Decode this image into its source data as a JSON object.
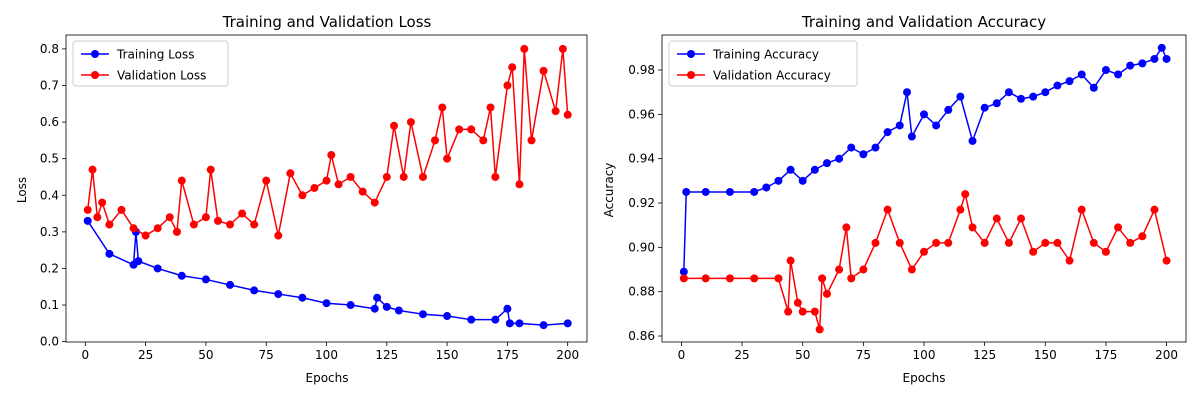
{
  "figure": {
    "charts": [
      {
        "title": "Training and Validation Loss",
        "xlabel": "Epochs",
        "ylabel": "Loss"
      },
      {
        "title": "Training and Validation Accuracy",
        "xlabel": "Epochs",
        "ylabel": "Accuracy"
      }
    ]
  },
  "chart_data": [
    {
      "type": "line",
      "title": "Training and Validation Loss",
      "xlabel": "Epochs",
      "ylabel": "Loss",
      "xlim": [
        -8,
        208
      ],
      "ylim": [
        -0.001,
        0.838
      ],
      "xticks": [
        0,
        25,
        50,
        75,
        100,
        125,
        150,
        175,
        200
      ],
      "yticks": [
        0.0,
        0.1,
        0.2,
        0.3,
        0.4,
        0.5,
        0.6,
        0.7,
        0.8
      ],
      "ytick_labels": [
        "0.0",
        "0.1",
        "0.2",
        "0.3",
        "0.4",
        "0.5",
        "0.6",
        "0.7",
        "0.8"
      ],
      "legend_position": "top-left",
      "grid": false,
      "markers": true,
      "series": [
        {
          "name": "Training Loss",
          "color": "#0000ff",
          "x": [
            1,
            10,
            20,
            21,
            22,
            30,
            40,
            50,
            60,
            70,
            80,
            90,
            100,
            110,
            120,
            121,
            125,
            130,
            140,
            150,
            160,
            170,
            175,
            176,
            180,
            190,
            200
          ],
          "y": [
            0.33,
            0.24,
            0.21,
            0.3,
            0.22,
            0.2,
            0.18,
            0.17,
            0.155,
            0.14,
            0.13,
            0.12,
            0.105,
            0.1,
            0.09,
            0.12,
            0.095,
            0.085,
            0.075,
            0.07,
            0.06,
            0.06,
            0.09,
            0.05,
            0.05,
            0.045,
            0.05
          ]
        },
        {
          "name": "Validation Loss",
          "color": "#ff0000",
          "x": [
            1,
            3,
            5,
            7,
            10,
            15,
            20,
            25,
            30,
            35,
            38,
            40,
            45,
            50,
            52,
            55,
            60,
            65,
            70,
            75,
            80,
            85,
            90,
            95,
            100,
            102,
            105,
            110,
            115,
            120,
            125,
            128,
            132,
            135,
            140,
            145,
            148,
            150,
            155,
            160,
            165,
            168,
            170,
            175,
            177,
            180,
            182,
            185,
            190,
            195,
            198,
            200
          ],
          "y": [
            0.36,
            0.47,
            0.34,
            0.38,
            0.32,
            0.36,
            0.31,
            0.29,
            0.31,
            0.34,
            0.3,
            0.44,
            0.32,
            0.34,
            0.47,
            0.33,
            0.32,
            0.35,
            0.32,
            0.44,
            0.29,
            0.46,
            0.4,
            0.42,
            0.44,
            0.51,
            0.43,
            0.45,
            0.41,
            0.38,
            0.45,
            0.59,
            0.45,
            0.6,
            0.45,
            0.55,
            0.64,
            0.5,
            0.58,
            0.58,
            0.55,
            0.64,
            0.45,
            0.7,
            0.75,
            0.43,
            0.8,
            0.55,
            0.74,
            0.63,
            0.8,
            0.62
          ]
        }
      ]
    },
    {
      "type": "line",
      "title": "Training and Validation Accuracy",
      "xlabel": "Epochs",
      "ylabel": "Accuracy",
      "xlim": [
        -8,
        208
      ],
      "ylim": [
        0.8573,
        0.9958
      ],
      "xticks": [
        0,
        25,
        50,
        75,
        100,
        125,
        150,
        175,
        200
      ],
      "yticks": [
        0.86,
        0.88,
        0.9,
        0.92,
        0.94,
        0.96,
        0.98
      ],
      "ytick_labels": [
        "0.86",
        "0.88",
        "0.90",
        "0.92",
        "0.94",
        "0.96",
        "0.98"
      ],
      "legend_position": "top-left",
      "grid": false,
      "markers": true,
      "series": [
        {
          "name": "Training Accuracy",
          "color": "#0000ff",
          "x": [
            1,
            2,
            10,
            20,
            30,
            35,
            40,
            45,
            50,
            55,
            60,
            65,
            70,
            75,
            80,
            85,
            90,
            93,
            95,
            100,
            105,
            110,
            115,
            120,
            125,
            130,
            135,
            140,
            145,
            150,
            155,
            160,
            165,
            170,
            175,
            180,
            185,
            190,
            195,
            198,
            200
          ],
          "y": [
            0.889,
            0.925,
            0.925,
            0.925,
            0.925,
            0.927,
            0.93,
            0.935,
            0.93,
            0.935,
            0.938,
            0.94,
            0.945,
            0.942,
            0.945,
            0.952,
            0.955,
            0.97,
            0.95,
            0.96,
            0.955,
            0.962,
            0.968,
            0.948,
            0.963,
            0.965,
            0.97,
            0.967,
            0.968,
            0.97,
            0.973,
            0.975,
            0.978,
            0.972,
            0.98,
            0.978,
            0.982,
            0.983,
            0.985,
            0.99,
            0.985
          ]
        },
        {
          "name": "Validation Accuracy",
          "color": "#ff0000",
          "x": [
            1,
            10,
            20,
            30,
            40,
            44,
            45,
            48,
            50,
            55,
            57,
            58,
            60,
            65,
            68,
            70,
            75,
            80,
            85,
            90,
            95,
            100,
            105,
            110,
            115,
            117,
            120,
            125,
            130,
            135,
            140,
            145,
            150,
            155,
            160,
            165,
            170,
            175,
            180,
            185,
            190,
            195,
            200
          ],
          "y": [
            0.886,
            0.886,
            0.886,
            0.886,
            0.886,
            0.871,
            0.894,
            0.875,
            0.871,
            0.871,
            0.863,
            0.886,
            0.879,
            0.89,
            0.909,
            0.886,
            0.89,
            0.902,
            0.917,
            0.902,
            0.89,
            0.898,
            0.902,
            0.902,
            0.917,
            0.924,
            0.909,
            0.902,
            0.913,
            0.902,
            0.913,
            0.898,
            0.902,
            0.902,
            0.894,
            0.917,
            0.902,
            0.898,
            0.909,
            0.902,
            0.905,
            0.917,
            0.894
          ]
        }
      ]
    }
  ]
}
